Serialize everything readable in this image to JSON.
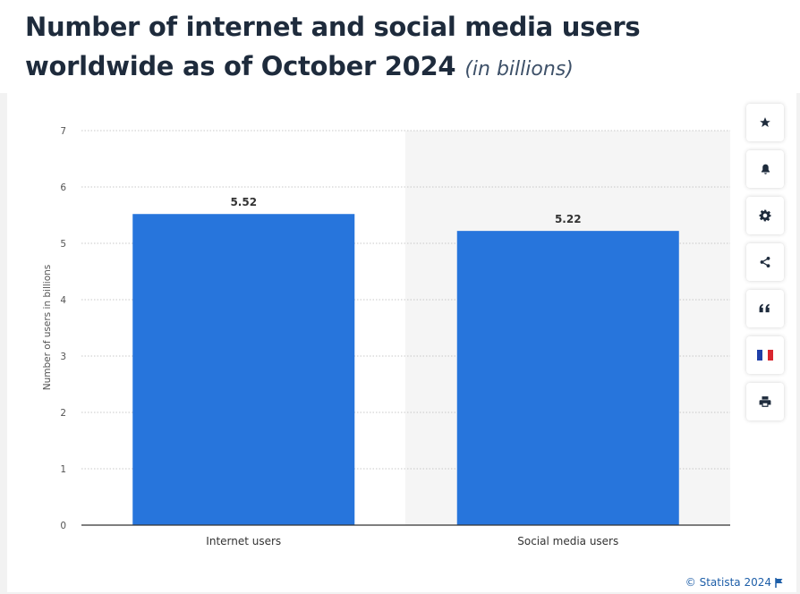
{
  "header": {
    "title": "Number of internet and social media users worldwide as of October 2024",
    "subtitle": "(in billions)"
  },
  "toolbar": {
    "items": [
      {
        "icon": "star-icon",
        "label": "Favorite"
      },
      {
        "icon": "bell-icon",
        "label": "Notification"
      },
      {
        "icon": "gear-icon",
        "label": "Settings"
      },
      {
        "icon": "share-icon",
        "label": "Share"
      },
      {
        "icon": "quote-icon",
        "label": "Cite"
      },
      {
        "icon": "french-flag-icon",
        "label": "Language"
      },
      {
        "icon": "printer-icon",
        "label": "Print"
      }
    ]
  },
  "credit": {
    "text": "© Statista 2024"
  },
  "colors": {
    "bar": "#2775dc",
    "highlight_band": "#f5f5f5",
    "grid": "#c8c8c8",
    "credit": "#1d5ea8"
  },
  "chart_data": {
    "type": "bar",
    "title": "Number of internet and social media users worldwide as of October 2024",
    "subtitle": "(in billions)",
    "categories": [
      "Internet users",
      "Social media users"
    ],
    "values": [
      5.52,
      5.22
    ],
    "data_labels": [
      "5.52",
      "5.22"
    ],
    "xlabel": "",
    "ylabel": "Number of users in billions",
    "ylim": [
      0,
      7
    ],
    "yticks": [
      0,
      1,
      2,
      3,
      4,
      5,
      6,
      7
    ],
    "grid": true,
    "legend": "none"
  }
}
